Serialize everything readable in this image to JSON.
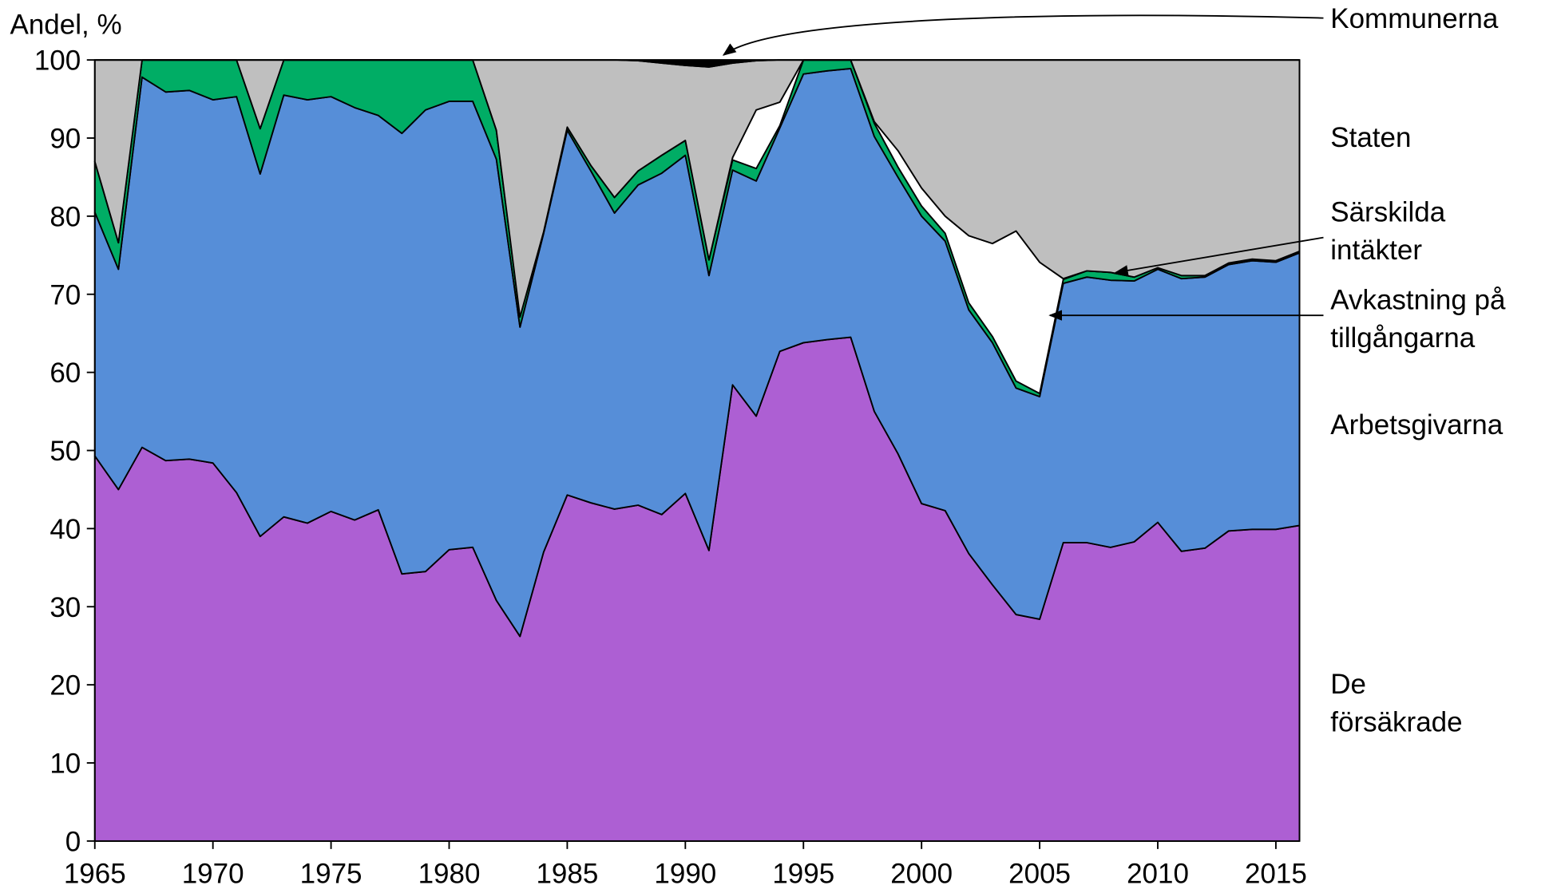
{
  "chart_data": {
    "type": "stacked-area",
    "y_label": "Andel, %",
    "x": [
      1965,
      1966,
      1967,
      1968,
      1969,
      1970,
      1971,
      1972,
      1973,
      1974,
      1975,
      1976,
      1977,
      1978,
      1979,
      1980,
      1981,
      1982,
      1983,
      1984,
      1985,
      1986,
      1987,
      1988,
      1989,
      1990,
      1991,
      1992,
      1993,
      1994,
      1995,
      1996,
      1997,
      1998,
      1999,
      2000,
      2001,
      2002,
      2003,
      2004,
      2005,
      2006,
      2007,
      2008,
      2009,
      2010,
      2011,
      2012,
      2013,
      2014,
      2015,
      2016
    ],
    "xlim": [
      1965,
      2016
    ],
    "xticks": [
      1965,
      1970,
      1975,
      1980,
      1985,
      1990,
      1995,
      2000,
      2005,
      2010,
      2015
    ],
    "ylim": [
      0,
      100
    ],
    "yticks": [
      0,
      10,
      20,
      30,
      40,
      50,
      60,
      70,
      80,
      90,
      100
    ],
    "series": [
      {
        "name": "De försäkrade",
        "color": "#ad5fd3",
        "values": [
          49.3,
          45,
          50.4,
          48.7,
          48.9,
          48.4,
          44.6,
          39,
          41.5,
          40.7,
          42.2,
          41.1,
          42.4,
          34.2,
          34.5,
          37.3,
          37.6,
          30.8,
          26.2,
          37,
          44.3,
          43.3,
          42.5,
          43,
          41.8,
          44.5,
          37.2,
          58.4,
          54.4,
          62.7,
          63.8,
          64.2,
          64.5,
          55,
          49.6,
          43.2,
          42.3,
          36.8,
          32.8,
          29,
          28.4,
          38.2,
          38.2,
          37.6,
          38.3,
          40.8,
          37.1,
          37.5,
          39.7,
          39.9,
          39.9,
          40.4
        ]
      },
      {
        "name": "Arbetsgivarna",
        "color": "#568ed8",
        "values": [
          31.2,
          28.2,
          47.4,
          47.2,
          47.2,
          46.5,
          50.7,
          46.4,
          54.0,
          54.2,
          53.1,
          52.8,
          50.5,
          56.4,
          59.1,
          57.4,
          57.1,
          56.5,
          39.6,
          40.8,
          46.7,
          42.5,
          37.9,
          41.0,
          43.7,
          43.3,
          35.2,
          27.5,
          30.1,
          28.6,
          34.4,
          34.4,
          34.4,
          35.2,
          35.4,
          36.8,
          34.5,
          31.2,
          31.0,
          29.0,
          28.5,
          33.2,
          34.0,
          34.2,
          33.4,
          32.4,
          34.9,
          34.7,
          34.1,
          34.4,
          34.2,
          34.9
        ]
      },
      {
        "name": "Särskilda intäkter",
        "color": "#00ad65",
        "values": [
          6.5,
          3.4,
          2.2,
          4.1,
          3.9,
          5.1,
          4.7,
          5.8,
          4.5,
          5.1,
          4.7,
          6.1,
          7.1,
          9.4,
          6.4,
          5.3,
          5.3,
          3.7,
          1.3,
          0.2,
          0.4,
          0.7,
          2.0,
          1.8,
          2.3,
          1.9,
          2.0,
          1.3,
          1.6,
          0.3,
          1.8,
          1.4,
          1.1,
          1.7,
          1.3,
          1.3,
          1.0,
          0.9,
          0.8,
          0.9,
          0.4,
          0.5,
          0.8,
          1.0,
          0.5,
          0.2,
          0.4,
          0.2,
          0.2,
          0.2,
          0.2,
          0.2
        ]
      },
      {
        "name": "Avkastning på tillgångarna",
        "color": "#ffffff",
        "values": [
          0,
          0,
          0,
          0,
          0,
          0,
          0,
          0,
          0,
          0,
          0,
          0,
          0,
          0,
          0,
          0,
          0,
          0,
          0,
          0,
          0,
          0,
          0,
          0,
          0,
          0,
          0,
          0.3,
          7.5,
          3.0,
          0,
          0,
          0,
          0.2,
          2.1,
          2.3,
          2.2,
          8.6,
          11.9,
          19.2,
          16.8,
          0.1,
          0,
          0,
          0,
          0,
          0,
          0,
          0,
          0,
          0,
          0
        ]
      },
      {
        "name": "Staten",
        "color": "#bfbfbf",
        "values": [
          13.0,
          23.4,
          0,
          0,
          0,
          0,
          0,
          8.8,
          0,
          0,
          0,
          0,
          0,
          0,
          0,
          0,
          0,
          9.0,
          32.9,
          22.0,
          8.6,
          13.5,
          17.6,
          14.1,
          11.8,
          9.6,
          24.7,
          12.1,
          6.3,
          5.4,
          0,
          0,
          0,
          7.9,
          11.6,
          16.4,
          20.0,
          22.5,
          23.5,
          21.9,
          25.9,
          28.0,
          27.0,
          27.2,
          27.8,
          26.6,
          27.6,
          27.6,
          26.0,
          25.5,
          25.7,
          24.5
        ]
      },
      {
        "name": "Kommunerna",
        "color": "#000000",
        "values": [
          0,
          0,
          0,
          0,
          0,
          0,
          0,
          0,
          0,
          0,
          0,
          0,
          0,
          0,
          0,
          0,
          0,
          0,
          0,
          0,
          0,
          0,
          0,
          0.1,
          0.4,
          0.7,
          0.9,
          0.4,
          0.1,
          0,
          0,
          0,
          0,
          0,
          0,
          0,
          0,
          0,
          0,
          0,
          0,
          0,
          0,
          0,
          0,
          0,
          0,
          0,
          0,
          0,
          0,
          0
        ]
      }
    ]
  }
}
